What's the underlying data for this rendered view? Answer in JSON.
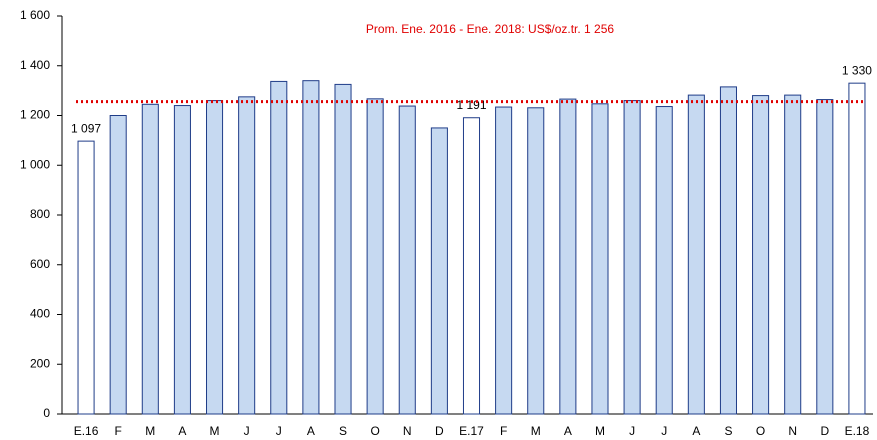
{
  "chart_data": {
    "type": "bar",
    "categories": [
      "E.16",
      "F",
      "M",
      "A",
      "M",
      "J",
      "J",
      "A",
      "S",
      "O",
      "N",
      "D",
      "E.17",
      "F",
      "M",
      "A",
      "M",
      "J",
      "J",
      "A",
      "S",
      "O",
      "N",
      "D",
      "E.18"
    ],
    "values": [
      1097,
      1200,
      1245,
      1240,
      1260,
      1275,
      1337,
      1340,
      1325,
      1267,
      1238,
      1150,
      1191,
      1234,
      1231,
      1266,
      1247,
      1260,
      1236,
      1282,
      1315,
      1280,
      1282,
      1264,
      1330
    ],
    "value_labels": [
      "1 097",
      null,
      null,
      null,
      null,
      null,
      null,
      null,
      null,
      null,
      null,
      null,
      "1 191",
      null,
      null,
      null,
      null,
      null,
      null,
      null,
      null,
      null,
      null,
      null,
      "1 330"
    ],
    "colors": [
      "#ffffff",
      "#c6d9f1",
      "#c6d9f1",
      "#c6d9f1",
      "#c6d9f1",
      "#c6d9f1",
      "#c6d9f1",
      "#c6d9f1",
      "#c6d9f1",
      "#c6d9f1",
      "#c6d9f1",
      "#c6d9f1",
      "#ffffff",
      "#c6d9f1",
      "#c6d9f1",
      "#c6d9f1",
      "#c6d9f1",
      "#c6d9f1",
      "#c6d9f1",
      "#c6d9f1",
      "#c6d9f1",
      "#c6d9f1",
      "#c6d9f1",
      "#c6d9f1",
      "#ffffff"
    ],
    "border_color": "#1f3c88",
    "average": 1256,
    "average_color": "#e00000",
    "annotation": "Prom. Ene. 2016 - Ene. 2018: US$/oz.tr. 1 256",
    "ylim": [
      0,
      1600
    ],
    "yticks": [
      0,
      200,
      400,
      600,
      800,
      {
        "value": 1000,
        "label": "1 000"
      },
      {
        "value": 1200,
        "label": "1 200"
      },
      {
        "value": 1400,
        "label": "1 400"
      },
      {
        "value": 1600,
        "label": "1 600"
      }
    ]
  }
}
